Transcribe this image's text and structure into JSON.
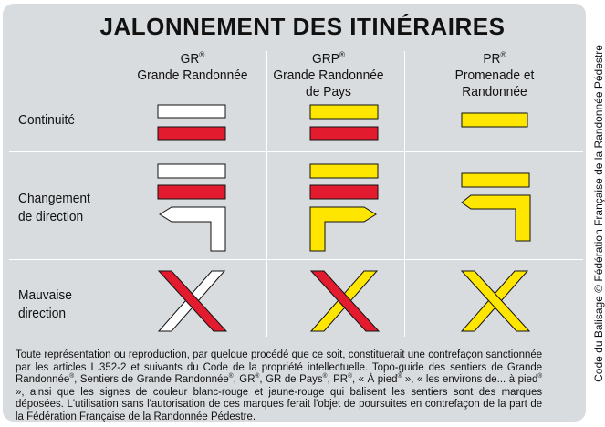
{
  "title": "JALONNEMENT DES ITINÉRAIRES",
  "columns": [
    {
      "abbr": "GR",
      "reg": "®",
      "name_lines": [
        "Grande Randonnée"
      ]
    },
    {
      "abbr": "GRP",
      "reg": "®",
      "name_lines": [
        "Grande Randonnée",
        "de Pays"
      ]
    },
    {
      "abbr": "PR",
      "reg": "®",
      "name_lines": [
        "Promenade et",
        "Randonnée"
      ]
    }
  ],
  "rows": {
    "continuite": "Continuité",
    "changement_line1": "Changement",
    "changement_line2": "de direction",
    "mauvaise_line1": "Mauvaise",
    "mauvaise_line2": "direction"
  },
  "colors": {
    "white": "#ffffff",
    "red": "#e21b2e",
    "yellow": "#ffe600",
    "panel": "#d9dcdf",
    "outline": "#111111"
  },
  "marks": {
    "gr": {
      "continuite": [
        "white-bar",
        "red-bar"
      ],
      "changement": [
        "white-bar",
        "red-bar",
        "white-arrow-left"
      ],
      "mauvaise": [
        "white-red-cross"
      ]
    },
    "grp": {
      "continuite": [
        "yellow-bar",
        "red-bar"
      ],
      "changement": [
        "yellow-bar",
        "red-bar",
        "yellow-arrow-left"
      ],
      "mauvaise": [
        "yellow-red-cross"
      ]
    },
    "pr": {
      "continuite": [
        "yellow-bar"
      ],
      "changement": [
        "yellow-bar",
        "yellow-hook"
      ],
      "mauvaise": [
        "yellow-cross"
      ]
    }
  },
  "footer": {
    "p1": "Toute représentation ou reproduction, par quelque procédé que ce soit, constituerait une contrefaçon sanctionnée par les articles L.352-2 et suivants du Code de la propriété intellectuelle. Topo-guide des sentiers de Grande Randonnée",
    "p2": ", Sentiers de Grande Randonnée",
    "p3": ", GR",
    "p4": ", GR de Pays",
    "p5": ", PR",
    "p6": ", « À pied",
    "p7": " », « les environs de... à pied",
    "p8": " », ainsi que les signes de couleur blanc-rouge et jaune-rouge qui balisent les sentiers sont des marques déposées. L'utilisation sans l'autorisation de ces marques ferait l'objet de poursuites en contrefaçon de la part de la Fédération Française de la Randonnée Pédestre.",
    "reg": "®"
  },
  "side_text": "Code du Balisage © Fédération Française de la Randonnée Pédestre"
}
